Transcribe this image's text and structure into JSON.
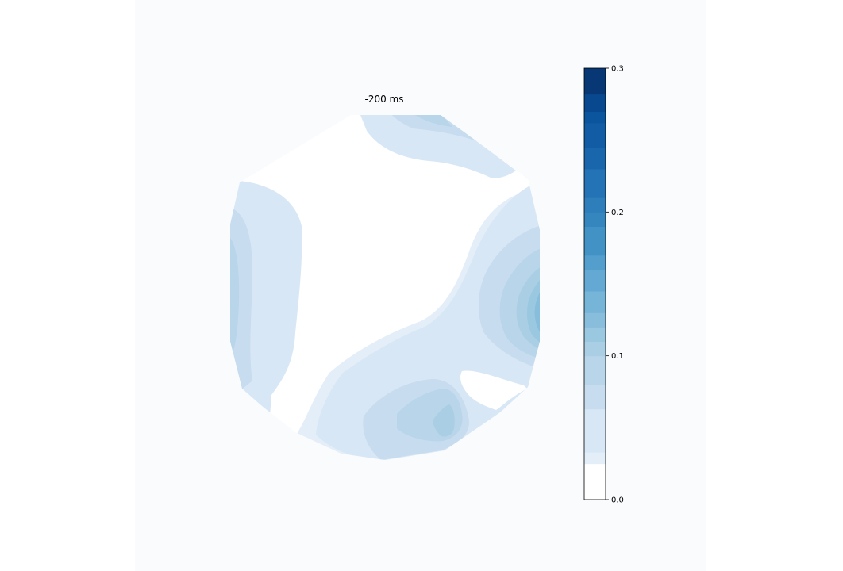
{
  "chart_data": {
    "type": "heatmap",
    "subtype": "topographic-contour",
    "title": "-200 ms",
    "colormap": "Blues",
    "colorbar": {
      "vmin": 0.0,
      "vmax": 0.3,
      "ticks": [
        0.0,
        0.1,
        0.2,
        0.3
      ],
      "tick_labels": [
        "0.0",
        "0.1",
        "0.2",
        "0.3"
      ],
      "placement": "right",
      "levels": [
        {
          "from": 0.0,
          "to": 0.025,
          "color": "#ffffff"
        },
        {
          "from": 0.025,
          "to": 0.033,
          "color": "#e3eef8"
        },
        {
          "from": 0.033,
          "to": 0.063,
          "color": "#d8e7f5"
        },
        {
          "from": 0.063,
          "to": 0.08,
          "color": "#c7dcef"
        },
        {
          "from": 0.08,
          "to": 0.1,
          "color": "#b8d5ea"
        },
        {
          "from": 0.1,
          "to": 0.11,
          "color": "#aacfe5"
        },
        {
          "from": 0.11,
          "to": 0.12,
          "color": "#9ac8e0"
        },
        {
          "from": 0.12,
          "to": 0.13,
          "color": "#88bedc"
        },
        {
          "from": 0.13,
          "to": 0.145,
          "color": "#76b4d8"
        },
        {
          "from": 0.145,
          "to": 0.16,
          "color": "#64a9d3"
        },
        {
          "from": 0.16,
          "to": 0.17,
          "color": "#539ecd"
        },
        {
          "from": 0.17,
          "to": 0.19,
          "color": "#4292c6"
        },
        {
          "from": 0.19,
          "to": 0.2,
          "color": "#3585bf"
        },
        {
          "from": 0.2,
          "to": 0.21,
          "color": "#2e7ebc"
        },
        {
          "from": 0.21,
          "to": 0.23,
          "color": "#2373b6"
        },
        {
          "from": 0.23,
          "to": 0.245,
          "color": "#1966ad"
        },
        {
          "from": 0.245,
          "to": 0.262,
          "color": "#115ca5"
        },
        {
          "from": 0.262,
          "to": 0.27,
          "color": "#0b559f"
        },
        {
          "from": 0.27,
          "to": 0.282,
          "color": "#08488e"
        },
        {
          "from": 0.282,
          "to": 0.3,
          "color": "#083776"
        }
      ]
    },
    "regions": [
      {
        "level": 0.03,
        "color": "#e3eef8"
      },
      {
        "level": 0.05,
        "color": "#d8e7f5"
      },
      {
        "level": 0.07,
        "color": "#c7dcef"
      },
      {
        "level": 0.09,
        "color": "#b8d5ea"
      },
      {
        "level": 0.1,
        "color": "#aacfe5"
      },
      {
        "level": 0.12,
        "color": "#9ac8e0"
      },
      {
        "level": 0.13,
        "color": "#88bedc"
      },
      {
        "level": 0.14,
        "color": "#76b4d8"
      },
      {
        "level": 0.15,
        "color": "#64a9d3"
      }
    ],
    "grid": false,
    "xlabel": "",
    "ylabel": ""
  }
}
